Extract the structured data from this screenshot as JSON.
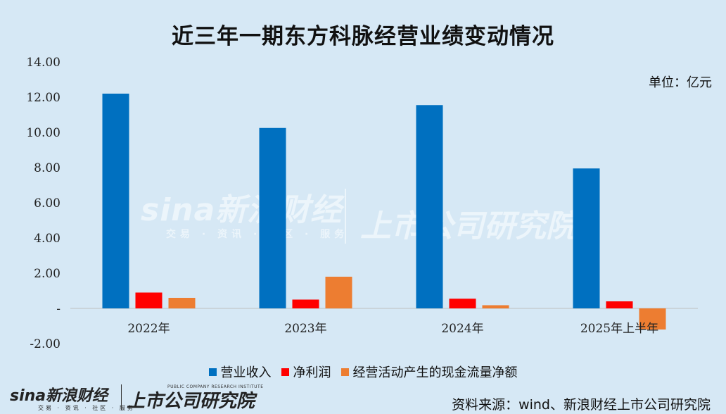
{
  "title": "近三年一期东方科脉经营业绩变动情况",
  "unit_label": "单位：亿元",
  "source": "资料来源：wind、新浪财经上市公司研究院",
  "watermark": {
    "logo_text": "sina新浪财经",
    "sub_text": "交易 · 资讯 · 社区 · 服务",
    "institute_text": "上市公司研究院",
    "institute_en": "PUBLIC COMPANY RESEARCH INSTITUTE"
  },
  "colors": {
    "revenue": "#0070c0",
    "net_profit": "#ff0000",
    "cash_flow": "#ed7d31",
    "background": "#d6e8f5"
  },
  "chart_data": {
    "type": "bar",
    "title": "近三年一期东方科脉经营业绩变动情况",
    "categories": [
      "2022年",
      "2023年",
      "2024年",
      "2025年上半年"
    ],
    "series": [
      {
        "name": "营业收入",
        "values": [
          12.2,
          10.25,
          11.55,
          7.95
        ]
      },
      {
        "name": "净利润",
        "values": [
          0.9,
          0.5,
          0.55,
          0.4
        ]
      },
      {
        "name": "经营活动产生的现金流量净额",
        "values": [
          0.6,
          1.8,
          0.18,
          -1.2
        ]
      }
    ],
    "ylim": [
      -2,
      14
    ],
    "yticks": [
      -2,
      0,
      2,
      4,
      6,
      8,
      10,
      12,
      14
    ],
    "ytick_labels": [
      "-2.00",
      "-",
      "2.00",
      "4.00",
      "6.00",
      "8.00",
      "10.00",
      "12.00",
      "14.00"
    ],
    "grid": false,
    "legend_position": "bottom"
  }
}
